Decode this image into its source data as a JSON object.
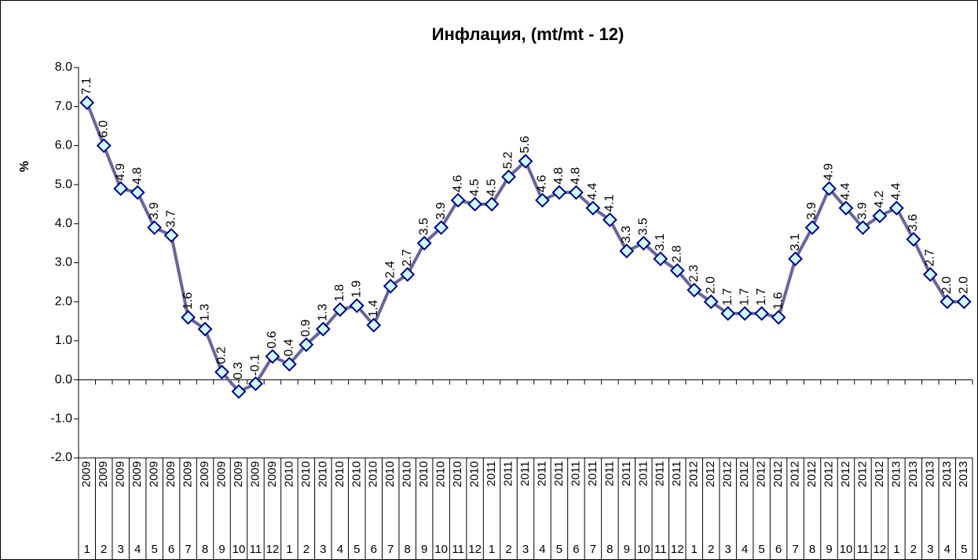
{
  "chart_data": {
    "type": "line",
    "title": "Инфлация, (mt/mt - 12)",
    "y_label": "%",
    "categories": [
      "1",
      "2",
      "3",
      "4",
      "5",
      "6",
      "7",
      "8",
      "9",
      "10",
      "11",
      "12",
      "1",
      "2",
      "3",
      "4",
      "5",
      "6",
      "7",
      "8",
      "9",
      "10",
      "11",
      "12",
      "1",
      "2",
      "3",
      "4",
      "5",
      "6",
      "7",
      "8",
      "9",
      "10",
      "11",
      "12",
      "1",
      "2",
      "3",
      "4",
      "5",
      "6",
      "7",
      "8",
      "9",
      "10",
      "11",
      "12",
      "1",
      "2",
      "3",
      "4",
      "5"
    ],
    "category_years": [
      "2009",
      "2009",
      "2009",
      "2009",
      "2009",
      "2009",
      "2009",
      "2009",
      "2009",
      "2009",
      "2009",
      "2009",
      "2010",
      "2010",
      "2010",
      "2010",
      "2010",
      "2010",
      "2010",
      "2010",
      "2010",
      "2010",
      "2010",
      "2010",
      "2011",
      "2011",
      "2011",
      "2011",
      "2011",
      "2011",
      "2011",
      "2011",
      "2011",
      "2011",
      "2011",
      "2011",
      "2012",
      "2012",
      "2012",
      "2012",
      "2012",
      "2012",
      "2012",
      "2012",
      "2012",
      "2012",
      "2012",
      "2012",
      "2013",
      "2013",
      "2013",
      "2013",
      "2013"
    ],
    "values": [
      7.1,
      6.0,
      4.9,
      4.8,
      3.9,
      3.7,
      1.6,
      1.3,
      0.2,
      -0.3,
      -0.1,
      0.6,
      0.4,
      0.9,
      1.3,
      1.8,
      1.9,
      1.4,
      2.4,
      2.7,
      3.5,
      3.9,
      4.6,
      4.5,
      4.5,
      5.2,
      5.6,
      4.6,
      4.8,
      4.8,
      4.4,
      4.1,
      3.3,
      3.5,
      3.1,
      2.8,
      2.3,
      2.0,
      1.7,
      1.7,
      1.7,
      1.6,
      3.1,
      3.9,
      4.9,
      4.4,
      3.9,
      4.2,
      4.4,
      3.6,
      2.7,
      2.0,
      2.0
    ],
    "value_labels": [
      "7.1",
      "6.0",
      "4.9",
      "4.8",
      "3.9",
      "3.7",
      "1.6",
      "1.3",
      "0.2",
      "-0.3",
      "-0.1",
      "0.6",
      "0.4",
      "0.9",
      "1.3",
      "1.8",
      "1.9",
      "1.4",
      "2.4",
      "2.7",
      "3.5",
      "3.9",
      "4.6",
      "4.5",
      "4.5",
      "5.2",
      "5.6",
      "4.6",
      "4.8",
      "4.8",
      "4.4",
      "4.1",
      "3.3",
      "3.5",
      "3.1",
      "2.8",
      "2.3",
      "2.0",
      "1.7",
      "1.7",
      "1.7",
      "1.6",
      "3.1",
      "3.9",
      "4.9",
      "4.4",
      "3.9",
      "4.2",
      "4.4",
      "3.6",
      "2.7",
      "2.0",
      "2.0"
    ],
    "color": "#666699",
    "marker_fill": "#ccffff",
    "marker_stroke": "#000080",
    "ylim": [
      -2,
      8
    ],
    "yticks": [
      {
        "value": -2,
        "label": "-2.0"
      },
      {
        "value": -1,
        "label": "-1.0"
      },
      {
        "value": 0,
        "label": "0.0"
      },
      {
        "value": 1,
        "label": "1.0"
      },
      {
        "value": 2,
        "label": "2.0"
      },
      {
        "value": 3,
        "label": "3.0"
      },
      {
        "value": 4,
        "label": "4.0"
      },
      {
        "value": 5,
        "label": "5.0"
      },
      {
        "value": 6,
        "label": "6.0"
      },
      {
        "value": 7,
        "label": "7.0"
      },
      {
        "value": 8,
        "label": "8.0"
      }
    ],
    "grid": false
  }
}
